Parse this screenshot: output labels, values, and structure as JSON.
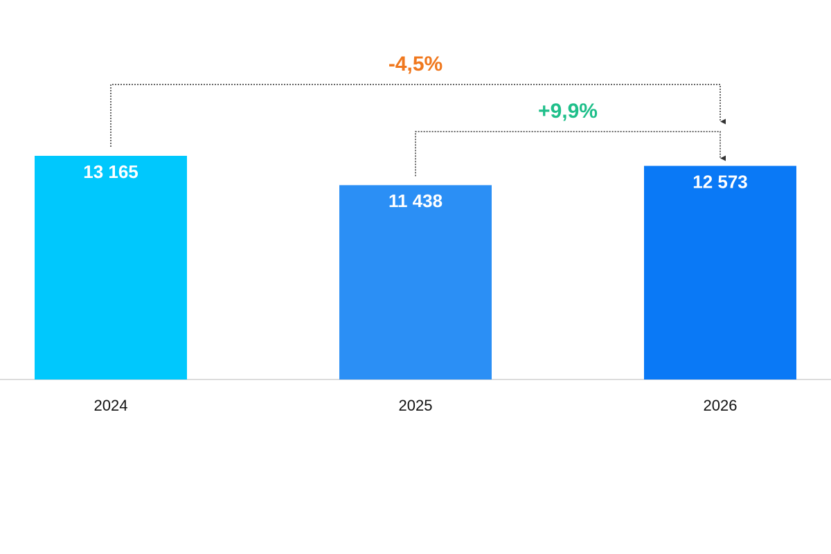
{
  "chart_data": {
    "type": "bar",
    "categories": [
      "2024",
      "2025",
      "2026"
    ],
    "values": [
      13165,
      11438,
      12573
    ],
    "value_labels": [
      "13 165",
      "11 438",
      "12 573"
    ],
    "colors": [
      "#00c8fd",
      "#2b8ff5",
      "#0a79f6"
    ],
    "annotations": [
      {
        "text": "-4,5%",
        "color": "#f0781e"
      },
      {
        "text": "+9,9%",
        "color": "#1fbf8a"
      }
    ]
  }
}
